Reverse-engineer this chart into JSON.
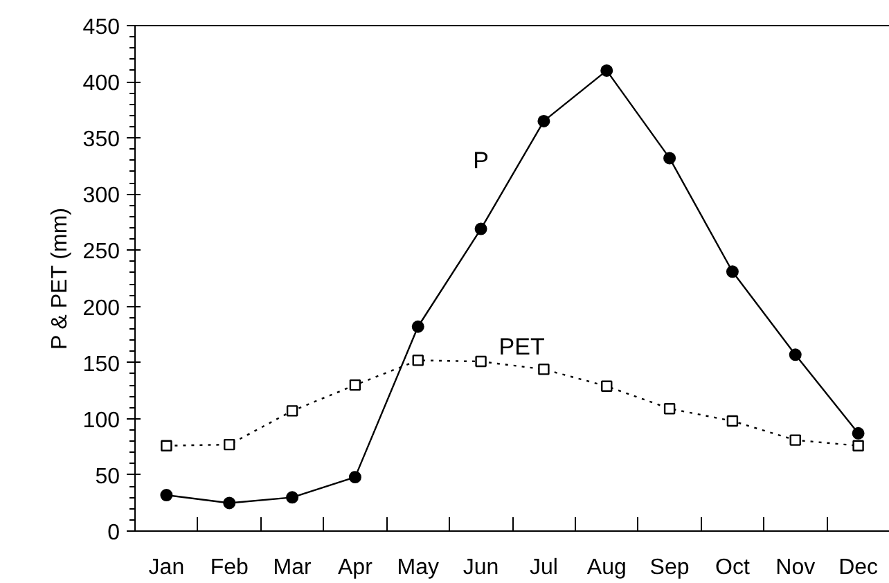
{
  "chart_data": {
    "type": "line",
    "ylabel": "P & PET (mm)",
    "categories": [
      "Jan",
      "Feb",
      "Mar",
      "Apr",
      "May",
      "Jun",
      "Jul",
      "Aug",
      "Sep",
      "Oct",
      "Nov",
      "Dec"
    ],
    "series": [
      {
        "name": "P",
        "color": "#000000",
        "marker": "circle",
        "line_style": "solid",
        "values": [
          32,
          25,
          30,
          48,
          182,
          269,
          365,
          410,
          332,
          231,
          157,
          87
        ]
      },
      {
        "name": "PET",
        "color": "#000000",
        "marker": "square",
        "line_style": "dotted",
        "values": [
          76,
          77,
          107,
          130,
          152,
          151,
          144,
          129,
          109,
          98,
          81,
          76
        ]
      }
    ],
    "ylim": [
      0,
      450
    ],
    "yticks": [
      0,
      50,
      100,
      150,
      200,
      250,
      300,
      350,
      400,
      450
    ],
    "grid": false
  }
}
